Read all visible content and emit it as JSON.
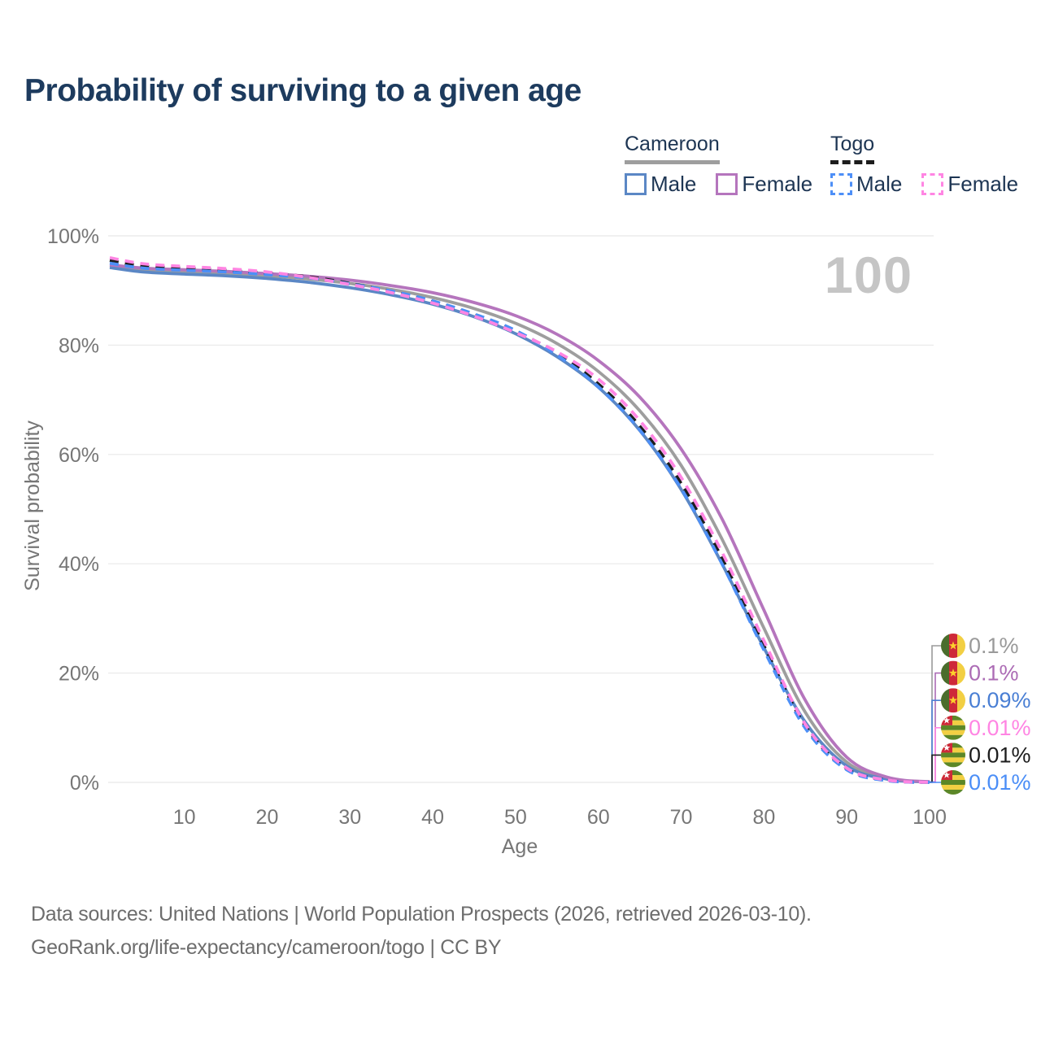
{
  "title": "Probability of surviving to a given age",
  "watermark": "100",
  "legend": {
    "groups": [
      {
        "label": "Cameroon",
        "underline_style": "solid",
        "underline_color": "#9e9e9e",
        "items": [
          {
            "label": "Male",
            "color": "#5b87c5",
            "style": "solid"
          },
          {
            "label": "Female",
            "color": "#b575bd",
            "style": "solid"
          }
        ]
      },
      {
        "label": "Togo",
        "underline_style": "dashed",
        "underline_color": "#1c1c1c",
        "items": [
          {
            "label": "Male",
            "color": "#4d8ff7",
            "style": "dashed"
          },
          {
            "label": "Female",
            "color": "#ff85e3",
            "style": "dashed"
          }
        ]
      }
    ]
  },
  "chart_data": {
    "type": "line",
    "title": "Probability of surviving to a given age",
    "xlabel": "Age",
    "ylabel": "Survival probability",
    "xlim": [
      1,
      100
    ],
    "ylim": [
      0,
      100
    ],
    "grid": "horizontal",
    "legend_position": "top-right",
    "xticks": [
      10,
      20,
      30,
      40,
      50,
      60,
      70,
      80,
      90,
      100
    ],
    "yticks": [
      {
        "value": 0,
        "label": "0%"
      },
      {
        "value": 20,
        "label": "20%"
      },
      {
        "value": 40,
        "label": "40%"
      },
      {
        "value": 60,
        "label": "60%"
      },
      {
        "value": 80,
        "label": "80%"
      },
      {
        "value": 100,
        "label": "100%"
      }
    ],
    "x": [
      1,
      5,
      10,
      15,
      20,
      25,
      30,
      35,
      40,
      45,
      50,
      55,
      60,
      65,
      70,
      75,
      80,
      85,
      90,
      95,
      100
    ],
    "series": [
      {
        "id": "cameroon-total",
        "name": "Cameroon",
        "country": "Cameroon",
        "style": "solid",
        "color": "#9e9e9e",
        "values": [
          94.5,
          93.8,
          93.5,
          93.2,
          92.7,
          92.1,
          91.3,
          90.2,
          88.7,
          86.7,
          84.0,
          80.3,
          75.2,
          68.0,
          58.0,
          44.3,
          28.2,
          12.8,
          3.7,
          0.7,
          0.1
        ]
      },
      {
        "id": "cameroon-male",
        "name": "Cameroon Male",
        "country": "Cameroon",
        "style": "solid",
        "color": "#5b87c5",
        "values": [
          94.2,
          93.4,
          93.0,
          92.7,
          92.2,
          91.5,
          90.5,
          89.2,
          87.5,
          85.2,
          82.1,
          77.9,
          72.3,
          64.4,
          53.6,
          39.8,
          24.6,
          11.0,
          3.0,
          0.55,
          0.09
        ]
      },
      {
        "id": "cameroon-female",
        "name": "Cameroon Female",
        "country": "Cameroon",
        "style": "solid",
        "color": "#b575bd",
        "values": [
          94.7,
          94.1,
          93.8,
          93.5,
          93.1,
          92.6,
          91.9,
          90.9,
          89.6,
          87.8,
          85.4,
          82.0,
          77.2,
          70.5,
          61.0,
          48.0,
          31.5,
          15.0,
          4.6,
          0.9,
          0.1
        ]
      },
      {
        "id": "togo-total",
        "name": "Togo",
        "country": "Togo",
        "style": "dashed",
        "color": "#1c1c1c",
        "values": [
          95.5,
          94.5,
          94.1,
          93.7,
          93.2,
          92.5,
          91.3,
          89.8,
          87.9,
          85.5,
          82.5,
          78.5,
          72.9,
          65.2,
          54.7,
          40.8,
          25.0,
          10.3,
          2.45,
          0.35,
          0.01
        ]
      },
      {
        "id": "togo-male",
        "name": "Togo Male",
        "country": "Togo",
        "style": "dashed",
        "color": "#4d8ff7",
        "values": [
          95.0,
          94.1,
          93.7,
          93.4,
          92.9,
          92.3,
          91.2,
          89.9,
          88.1,
          85.7,
          82.7,
          78.2,
          72.4,
          64.5,
          53.8,
          39.8,
          24.2,
          9.9,
          2.3,
          0.3,
          0.01
        ]
      },
      {
        "id": "togo-female",
        "name": "Togo Female",
        "country": "Togo",
        "style": "dashed",
        "color": "#ff85e3",
        "values": [
          96.0,
          94.9,
          94.4,
          94.0,
          93.4,
          92.4,
          91.1,
          89.6,
          87.7,
          85.3,
          82.3,
          78.8,
          73.8,
          66.2,
          55.8,
          41.9,
          25.9,
          10.6,
          2.6,
          0.4,
          0.01
        ]
      }
    ]
  },
  "end_labels": [
    {
      "series": "cameroon-total",
      "flag": "cameroon",
      "value": "0.1%",
      "color": "#9a9a9a"
    },
    {
      "series": "cameroon-female",
      "flag": "cameroon",
      "value": "0.1%",
      "color": "#ac6cb5"
    },
    {
      "series": "cameroon-male",
      "flag": "cameroon",
      "value": "0.09%",
      "color": "#4a7fd4"
    },
    {
      "series": "togo-female",
      "flag": "togo",
      "value": "0.01%",
      "color": "#ff85e3"
    },
    {
      "series": "togo-total",
      "flag": "togo",
      "value": "0.01%",
      "color": "#1d1d1d"
    },
    {
      "series": "togo-male",
      "flag": "togo",
      "value": "0.01%",
      "color": "#4b8ef7"
    }
  ],
  "flags": {
    "cameroon": {
      "green": "#4a6d2c",
      "red": "#ce2939",
      "yellow": "#f2cf43",
      "star": "#fcd12b"
    },
    "togo": {
      "green": "#5c8727",
      "yellow": "#f2cf43",
      "red": "#ce2939",
      "star": "#ffffff"
    }
  },
  "footer": {
    "line1": "Data sources: United Nations | World Population Prospects (2026, retrieved 2026-03-10).",
    "line2": "GeoRank.org/life-expectancy/cameroon/togo | CC BY"
  },
  "colors": {
    "title_text": "#1d3b5e",
    "legend_text": "#1d3553",
    "axis_text": "#767676",
    "grid": "#ececec",
    "watermark": "#c5c5c5"
  }
}
